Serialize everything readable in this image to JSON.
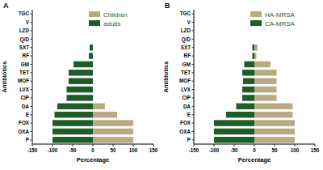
{
  "chart_data": [
    {
      "type": "bar",
      "orientation": "horizontal",
      "title": "A",
      "xlabel": "Percentage",
      "ylabel": "Antibiotics",
      "categories": [
        "TGC",
        "V",
        "LZD",
        "Q/D",
        "SXT",
        "RF",
        "GM",
        "TET",
        "MOF",
        "LVX",
        "CIP",
        "DA",
        "E",
        "FOX",
        "OXA",
        "P"
      ],
      "series": [
        {
          "name": "Children",
          "color": "#b8ab84",
          "values": [
            0,
            0,
            0,
            0,
            0,
            0,
            0,
            0,
            0,
            0,
            0,
            30,
            60,
            100,
            100,
            100
          ]
        },
        {
          "name": "adults",
          "color": "#1e5c28",
          "values": [
            0,
            0,
            0,
            0,
            -8,
            -10,
            -48,
            -60,
            -60,
            -65,
            -65,
            -88,
            -95,
            -100,
            -100,
            -100
          ]
        }
      ],
      "xlim": [
        -150,
        150
      ],
      "xticks": [
        -150,
        -100,
        -50,
        0,
        50,
        100,
        150
      ],
      "legend": "upper right"
    },
    {
      "type": "bar",
      "orientation": "horizontal",
      "title": "B",
      "xlabel": "Percentage",
      "ylabel": "Antibiotics",
      "categories": [
        "TGC",
        "V",
        "LZD",
        "Q/D",
        "SXT",
        "RF",
        "GM",
        "TET",
        "MOF",
        "LVX",
        "CIP",
        "DA",
        "E",
        "FOX",
        "OXA",
        "P"
      ],
      "series": [
        {
          "name": "HA-MRSA",
          "color": "#b8ab84",
          "values": [
            0,
            0,
            0,
            0,
            8,
            5,
            40,
            55,
            55,
            55,
            55,
            95,
            95,
            100,
            100,
            100
          ]
        },
        {
          "name": "CA-MRSA",
          "color": "#1e5c28",
          "values": [
            0,
            0,
            0,
            0,
            -5,
            -5,
            -25,
            -30,
            -28,
            -30,
            -30,
            -45,
            -70,
            -100,
            -100,
            -100
          ]
        }
      ],
      "xlim": [
        -150,
        150
      ],
      "xticks": [
        -150,
        -100,
        -50,
        0,
        50,
        100,
        150
      ],
      "legend": "upper right"
    }
  ]
}
